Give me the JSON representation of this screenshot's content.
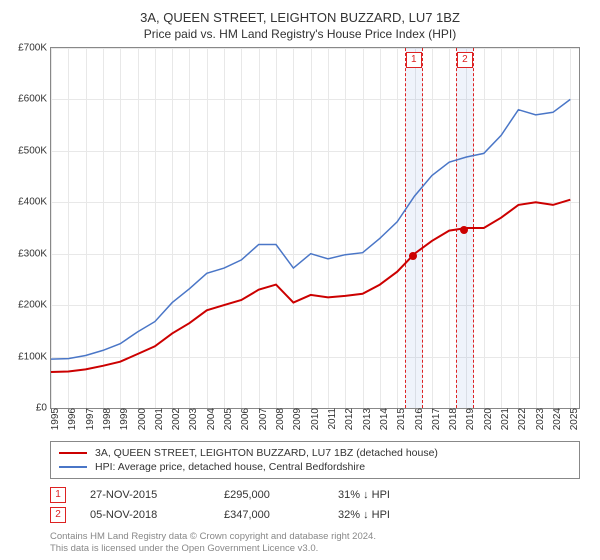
{
  "title": "3A, QUEEN STREET, LEIGHTON BUZZARD, LU7 1BZ",
  "subtitle": "Price paid vs. HM Land Registry's House Price Index (HPI)",
  "chart": {
    "type": "line",
    "background_color": "#ffffff",
    "grid_color": "#e8e8e8",
    "border_color": "#888888",
    "x_years": [
      1995,
      1996,
      1997,
      1998,
      1999,
      2000,
      2001,
      2002,
      2003,
      2004,
      2005,
      2006,
      2007,
      2008,
      2009,
      2010,
      2011,
      2012,
      2013,
      2014,
      2015,
      2016,
      2017,
      2018,
      2019,
      2020,
      2021,
      2022,
      2023,
      2024,
      2025
    ],
    "xlim": [
      1995,
      2025.5
    ],
    "ylim": [
      0,
      700000
    ],
    "ytick_step": 100000,
    "yticks": [
      "£0",
      "£100K",
      "£200K",
      "£300K",
      "£400K",
      "£500K",
      "£600K",
      "£700K"
    ],
    "tick_fontsize": 10,
    "series": [
      {
        "name": "property_price",
        "color": "#cc0000",
        "width": 2,
        "values_by_year": {
          "1995": 70000,
          "1996": 71000,
          "1997": 75000,
          "1998": 82000,
          "1999": 90000,
          "2000": 105000,
          "2001": 120000,
          "2002": 145000,
          "2003": 165000,
          "2004": 190000,
          "2005": 200000,
          "2006": 210000,
          "2007": 230000,
          "2008": 240000,
          "2009": 205000,
          "2010": 220000,
          "2011": 215000,
          "2012": 218000,
          "2013": 222000,
          "2014": 240000,
          "2015": 265000,
          "2016": 300000,
          "2017": 325000,
          "2018": 345000,
          "2019": 350000,
          "2020": 350000,
          "2021": 370000,
          "2022": 395000,
          "2023": 400000,
          "2024": 395000,
          "2025": 405000
        }
      },
      {
        "name": "hpi",
        "color": "#4a76c7",
        "width": 1.5,
        "values_by_year": {
          "1995": 95000,
          "1996": 96000,
          "1997": 102000,
          "1998": 112000,
          "1999": 125000,
          "2000": 148000,
          "2001": 168000,
          "2002": 205000,
          "2003": 232000,
          "2004": 262000,
          "2005": 272000,
          "2006": 288000,
          "2007": 318000,
          "2008": 318000,
          "2009": 272000,
          "2010": 300000,
          "2011": 290000,
          "2012": 298000,
          "2013": 302000,
          "2014": 330000,
          "2015": 362000,
          "2016": 412000,
          "2017": 452000,
          "2018": 478000,
          "2019": 488000,
          "2020": 495000,
          "2021": 530000,
          "2022": 580000,
          "2023": 570000,
          "2024": 575000,
          "2025": 600000
        }
      }
    ],
    "sale_markers": [
      {
        "idx": "1",
        "year": 2015.9,
        "price": 295000,
        "color": "#cc0000"
      },
      {
        "idx": "2",
        "year": 2018.85,
        "price": 347000,
        "color": "#cc0000"
      }
    ],
    "sale_band_color": "rgba(100,140,220,0.10)",
    "sale_band_border": "#d22"
  },
  "legend": {
    "items": [
      {
        "color": "#cc0000",
        "label": "3A, QUEEN STREET, LEIGHTON BUZZARD, LU7 1BZ (detached house)"
      },
      {
        "color": "#4a76c7",
        "label": "HPI: Average price, detached house, Central Bedfordshire"
      }
    ],
    "fontsize": 10.5
  },
  "sales_table": {
    "rows": [
      {
        "idx": "1",
        "date": "27-NOV-2015",
        "price": "£295,000",
        "pct": "31% ↓ HPI"
      },
      {
        "idx": "2",
        "date": "05-NOV-2018",
        "price": "£347,000",
        "pct": "32% ↓ HPI"
      }
    ],
    "fontsize": 11
  },
  "footer": {
    "line1": "Contains HM Land Registry data © Crown copyright and database right 2024.",
    "line2": "This data is licensed under the Open Government Licence v3.0.",
    "color": "#888888",
    "fontsize": 9.5
  }
}
